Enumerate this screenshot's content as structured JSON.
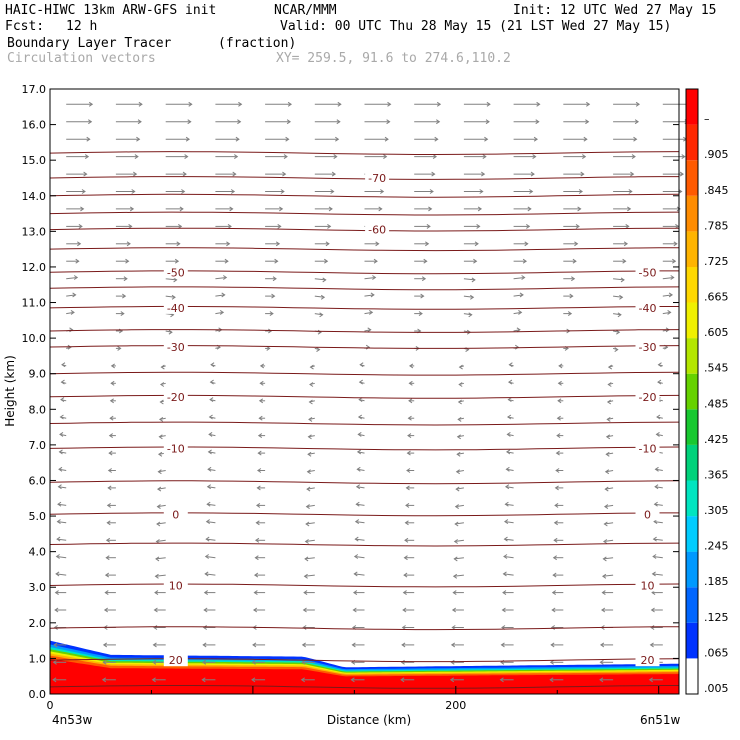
{
  "header": {
    "model": "HAIC-HIWC 13km ARW-GFS init",
    "org": "NCAR/MMM",
    "init": "Init: 12 UTC Wed 27 May 15",
    "fcst_label": "Fcst:",
    "fcst_value": "12 h",
    "valid": "Valid: 00 UTC Thu 28 May 15 (21 LST Wed 27 May 15)",
    "field": "Boundary Layer Tracer",
    "field_units": "(fraction)",
    "vectors": "Circulation vectors",
    "xy": "XY= 259.5, 91.6 to 274.6,110.2"
  },
  "colors": {
    "contour": "#7a1a1a",
    "vector": "#808080"
  },
  "chart_data": {
    "type": "heatmap",
    "title": "Boundary Layer Tracer",
    "units": "(fraction)",
    "xlabel": "Distance (km)",
    "ylabel": "Height (km)",
    "xlim": [
      0,
      310
    ],
    "ylim": [
      0,
      17
    ],
    "x_ticks": [
      {
        "value": 0,
        "label": "0"
      },
      {
        "value": 200,
        "label": "200"
      }
    ],
    "x_endpoints": {
      "left": "4n53w",
      "right": "6n51w"
    },
    "y_ticks": [
      "0.0",
      "1.0",
      "2.0",
      "3.0",
      "4.0",
      "5.0",
      "6.0",
      "7.0",
      "8.0",
      "9.0",
      "10.0",
      "11.0",
      "12.0",
      "13.0",
      "14.0",
      "15.0",
      "16.0",
      "17.0"
    ],
    "colorbar": {
      "labels": [
        ".005",
        ".065",
        ".125",
        ".185",
        ".245",
        ".305",
        ".365",
        ".425",
        ".485",
        ".545",
        ".605",
        ".665",
        ".725",
        ".785",
        ".845",
        ".905",
        "–"
      ],
      "colors": [
        "#ffffff",
        "#0033ff",
        "#0066ff",
        "#0099ff",
        "#00ccff",
        "#00e5c0",
        "#00d27a",
        "#18c830",
        "#66d200",
        "#b4e600",
        "#f0f000",
        "#ffd800",
        "#ffb400",
        "#ff8c00",
        "#ff5a00",
        "#ff2800",
        "#ff0000"
      ]
    },
    "tracer_layer": {
      "top_height_km": [
        {
          "x": 0,
          "top": 1.5
        },
        {
          "x": 30,
          "top": 1.1
        },
        {
          "x": 125,
          "top": 1.05
        },
        {
          "x": 145,
          "top": 0.75
        },
        {
          "x": 310,
          "top": 0.85
        }
      ]
    },
    "temperature_contours_C": [
      {
        "value": -70,
        "label": "-70",
        "height_km": 14.5
      },
      {
        "value": -60,
        "label": "-60",
        "height_km": 13.05
      },
      {
        "value": -50,
        "label": "-50",
        "height_km": 11.85
      },
      {
        "value": -40,
        "label": "-40",
        "height_km": 10.85
      },
      {
        "value": -30,
        "label": "-30",
        "height_km": 9.75
      },
      {
        "value": -20,
        "label": "-20",
        "height_km": 8.35
      },
      {
        "value": -10,
        "label": "-10",
        "height_km": 6.9
      },
      {
        "value": 0,
        "label": "0",
        "height_km": 5.05
      },
      {
        "value": 10,
        "label": "10",
        "height_km": 3.05
      },
      {
        "value": 20,
        "label": "20",
        "height_km": 0.95
      }
    ],
    "unlabeled_contour_heights_km": [
      15.2,
      14.0,
      13.5,
      12.5,
      11.4,
      10.2,
      9.0,
      7.6,
      5.95,
      4.2,
      1.85,
      0.2
    ],
    "wind_vectors": {
      "upper_direction": "eastward",
      "lower_direction": "westward",
      "reversal_height_km": 9.5
    }
  }
}
